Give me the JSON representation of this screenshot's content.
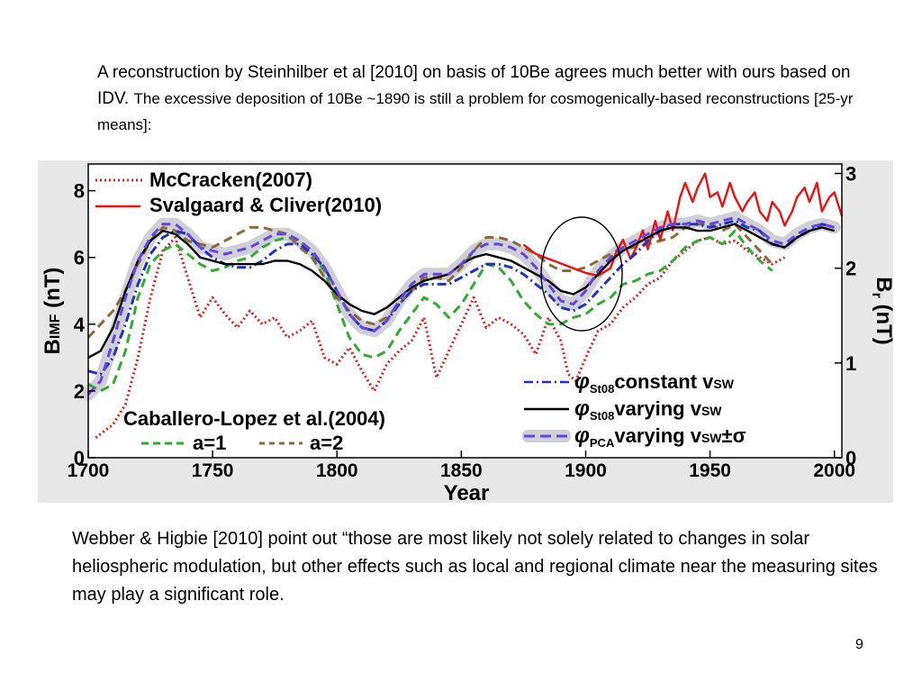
{
  "slide": {
    "intro_part1": "A reconstruction by Steinhilber et al [2010] on basis of 10Be agrees much better with ours based on IDV. ",
    "intro_part2": "The excessive deposition of 10Be ~1890 is still a problem for cosmogenically-based reconstructions [25-yr means]:",
    "outro": "Webber & Higbie [2010] point out “those are most likely not solely related to changes in solar heliospheric modulation, but other effects such as local and regional climate near the measuring sites may play a significant role.",
    "page_number": "9"
  },
  "chart_data": {
    "type": "line",
    "title": "",
    "xlabel": "Year",
    "ylabel_left_main": "B",
    "ylabel_left_sub": "IMF",
    "ylabel_left_unit": " (nT)",
    "ylabel_right_main": "B",
    "ylabel_right_sub": "r",
    "ylabel_right_unit": " (nT)",
    "xlim": [
      1700,
      2003
    ],
    "ylim_left": [
      0,
      8.8
    ],
    "ylim_right": [
      0,
      3.1
    ],
    "x_ticks": [
      "1700",
      "1750",
      "1800",
      "1850",
      "1900",
      "1950",
      "2000"
    ],
    "y_ticks_left": [
      "0",
      "2",
      "4",
      "6",
      "8"
    ],
    "y_ticks_right": [
      "0",
      "1",
      "2",
      "3"
    ],
    "grid": false,
    "legend": {
      "top_left": [
        "McCracken(2007)",
        "Svalgaard & Cliver(2010)"
      ],
      "bottom_left_title": "Caballero-Lopez et al.(2004)",
      "bottom_left": [
        "a=1",
        "a=2"
      ],
      "bottom_right": [
        {
          "symbol": "φ",
          "sub": "St08",
          "text": "constant v",
          "text_sub": "SW",
          "suffix": ""
        },
        {
          "symbol": "φ",
          "sub": "St08",
          "text": "varying v",
          "text_sub": "SW",
          "suffix": ""
        },
        {
          "symbol": "φ",
          "sub": "PCA",
          "text": "varying v",
          "text_sub": "SW",
          "suffix": "±σ"
        }
      ]
    },
    "series": [
      {
        "name": "McCracken(2007)",
        "color": "#dd2222",
        "style": "dotted",
        "axis": "left",
        "x": [
          1703,
          1710,
          1715,
          1720,
          1725,
          1730,
          1735,
          1740,
          1745,
          1750,
          1755,
          1760,
          1765,
          1770,
          1775,
          1780,
          1785,
          1790,
          1795,
          1800,
          1805,
          1810,
          1815,
          1820,
          1825,
          1830,
          1835,
          1840,
          1845,
          1850,
          1855,
          1860,
          1865,
          1870,
          1875,
          1880,
          1885,
          1890,
          1893,
          1896,
          1900,
          1905,
          1910,
          1915,
          1920,
          1925,
          1930,
          1935,
          1940,
          1945,
          1950,
          1955,
          1960,
          1965,
          1970,
          1975,
          1980
        ],
        "y": [
          0.6,
          1.0,
          1.6,
          3.0,
          4.8,
          6.2,
          6.6,
          5.4,
          4.2,
          4.8,
          4.3,
          3.9,
          4.4,
          4.0,
          4.2,
          3.6,
          3.8,
          4.1,
          3.0,
          2.8,
          3.3,
          2.6,
          2.0,
          2.8,
          3.2,
          3.5,
          4.2,
          2.4,
          3.2,
          4.0,
          4.8,
          3.9,
          4.2,
          4.0,
          3.7,
          3.1,
          4.2,
          3.5,
          2.5,
          2.3,
          3.0,
          3.8,
          4.0,
          4.5,
          4.8,
          5.2,
          5.4,
          5.9,
          6.2,
          6.5,
          6.6,
          6.4,
          6.5,
          6.2,
          6.0,
          5.8,
          6.0
        ]
      },
      {
        "name": "a=1",
        "color": "#33aa33",
        "style": "dashed",
        "axis": "left",
        "x": [
          1700,
          1705,
          1710,
          1715,
          1720,
          1725,
          1730,
          1735,
          1740,
          1745,
          1750,
          1755,
          1760,
          1765,
          1770,
          1775,
          1780,
          1785,
          1790,
          1795,
          1800,
          1805,
          1810,
          1815,
          1820,
          1825,
          1830,
          1835,
          1840,
          1845,
          1850,
          1855,
          1860,
          1865,
          1870,
          1875,
          1880,
          1885,
          1890,
          1895,
          1900,
          1905,
          1910,
          1915,
          1920,
          1925,
          1930,
          1935,
          1940,
          1945,
          1950,
          1955,
          1960,
          1965,
          1970,
          1975
        ],
        "y": [
          2.2,
          2.0,
          2.2,
          3.2,
          4.8,
          5.8,
          6.2,
          6.4,
          6.1,
          5.8,
          5.6,
          5.7,
          5.9,
          6.0,
          6.3,
          6.5,
          6.6,
          6.5,
          6.1,
          5.6,
          4.6,
          3.6,
          3.1,
          3.0,
          3.2,
          3.8,
          4.3,
          4.8,
          4.6,
          4.2,
          4.6,
          5.2,
          5.8,
          5.7,
          5.3,
          4.7,
          4.3,
          4.0,
          4.0,
          4.2,
          4.3,
          4.6,
          4.8,
          5.2,
          5.3,
          5.5,
          5.6,
          5.9,
          6.3,
          6.5,
          6.6,
          6.4,
          6.8,
          6.3,
          5.9,
          5.6
        ]
      },
      {
        "name": "a=2",
        "color": "#8b6a3a",
        "style": "dashed",
        "axis": "left",
        "x": [
          1700,
          1705,
          1710,
          1715,
          1720,
          1725,
          1730,
          1735,
          1740,
          1745,
          1750,
          1755,
          1760,
          1765,
          1770,
          1775,
          1780,
          1785,
          1790,
          1795,
          1800,
          1805,
          1810,
          1815,
          1820,
          1825,
          1830,
          1835,
          1840,
          1845,
          1850,
          1855,
          1860,
          1865,
          1870,
          1875,
          1880,
          1885,
          1890,
          1895,
          1900,
          1905,
          1910,
          1915,
          1920,
          1925,
          1930,
          1935,
          1940,
          1945,
          1950,
          1955,
          1960,
          1965,
          1970,
          1975
        ],
        "y": [
          3.6,
          4.0,
          4.4,
          5.0,
          5.8,
          6.5,
          6.9,
          6.8,
          6.5,
          6.4,
          6.3,
          6.5,
          6.7,
          6.9,
          6.9,
          6.8,
          6.7,
          6.3,
          6.0,
          5.4,
          4.8,
          4.4,
          4.1,
          4.0,
          4.2,
          4.6,
          5.0,
          5.4,
          5.4,
          5.3,
          5.7,
          6.2,
          6.6,
          6.6,
          6.5,
          6.3,
          6.1,
          5.8,
          5.6,
          5.6,
          5.7,
          5.9,
          6.1,
          6.3,
          6.3,
          6.4,
          6.5,
          6.6,
          6.9,
          7.0,
          7.0,
          6.8,
          7.0,
          6.6,
          6.2,
          5.8
        ]
      },
      {
        "name": "Svalgaard & Cliver(2010)",
        "color": "#ee1111",
        "style": "solid",
        "axis": "right",
        "x": [
          1875,
          1880,
          1885,
          1890,
          1895,
          1900,
          1905,
          1910,
          1912,
          1915,
          1918,
          1920,
          1923,
          1925,
          1928,
          1930,
          1933,
          1935,
          1938,
          1940,
          1943,
          1945,
          1948,
          1950,
          1953,
          1955,
          1958,
          1960,
          1963,
          1965,
          1968,
          1970,
          1973,
          1975,
          1978,
          1980,
          1983,
          1985,
          1988,
          1990,
          1993,
          1995,
          1998,
          2000,
          2003
        ],
        "y": [
          2.25,
          2.15,
          2.1,
          2.05,
          2.0,
          1.95,
          1.92,
          2.0,
          2.15,
          2.3,
          2.1,
          2.2,
          2.4,
          2.2,
          2.5,
          2.3,
          2.6,
          2.4,
          2.75,
          2.9,
          2.7,
          2.85,
          3.0,
          2.75,
          2.8,
          2.65,
          2.9,
          2.75,
          2.6,
          2.7,
          2.8,
          2.6,
          2.5,
          2.7,
          2.6,
          2.45,
          2.6,
          2.75,
          2.85,
          2.7,
          2.9,
          2.6,
          2.75,
          2.8,
          2.55
        ]
      },
      {
        "name": "φ St08 constant vSW",
        "color": "#2233bb",
        "style": "dashdot",
        "axis": "left",
        "x": [
          1700,
          1705,
          1710,
          1715,
          1720,
          1725,
          1730,
          1735,
          1740,
          1745,
          1750,
          1755,
          1760,
          1765,
          1770,
          1775,
          1780,
          1785,
          1790,
          1795,
          1800,
          1805,
          1810,
          1815,
          1820,
          1825,
          1830,
          1835,
          1840,
          1845,
          1850,
          1855,
          1860,
          1865,
          1870,
          1875,
          1880,
          1885,
          1890,
          1895,
          1900,
          1905,
          1910,
          1915,
          1920,
          1925,
          1930,
          1935,
          1940,
          1945,
          1950,
          1955,
          1960,
          1965,
          1970,
          1975,
          1980,
          1985,
          1990,
          1995,
          2000
        ],
        "y": [
          2.6,
          2.5,
          3.0,
          4.0,
          5.2,
          6.1,
          6.6,
          6.8,
          6.7,
          6.3,
          6.0,
          5.8,
          5.7,
          5.7,
          5.9,
          6.2,
          6.4,
          6.4,
          6.1,
          5.7,
          5.0,
          4.3,
          3.9,
          3.8,
          4.1,
          4.6,
          5.0,
          5.2,
          5.2,
          5.2,
          5.4,
          5.6,
          5.8,
          5.8,
          5.7,
          5.5,
          5.2,
          4.9,
          4.5,
          4.4,
          4.6,
          5.0,
          5.4,
          5.8,
          6.1,
          6.5,
          6.8,
          7.0,
          7.0,
          7.0,
          6.9,
          7.0,
          7.1,
          6.9,
          6.8,
          6.4,
          6.3,
          6.6,
          6.8,
          7.0,
          6.9
        ]
      },
      {
        "name": "φ St08 varying vSW",
        "color": "#000000",
        "style": "solid",
        "axis": "left",
        "x": [
          1700,
          1705,
          1710,
          1715,
          1720,
          1725,
          1730,
          1735,
          1740,
          1745,
          1750,
          1755,
          1760,
          1765,
          1770,
          1775,
          1780,
          1785,
          1790,
          1795,
          1800,
          1805,
          1810,
          1815,
          1820,
          1825,
          1830,
          1835,
          1840,
          1845,
          1850,
          1855,
          1860,
          1865,
          1870,
          1875,
          1880,
          1885,
          1890,
          1895,
          1900,
          1905,
          1910,
          1915,
          1920,
          1925,
          1930,
          1935,
          1940,
          1945,
          1950,
          1955,
          1960,
          1965,
          1970,
          1975,
          1980,
          1985,
          1990,
          1995,
          2000
        ],
        "y": [
          3.0,
          3.2,
          3.9,
          5.0,
          5.9,
          6.5,
          6.8,
          6.7,
          6.4,
          6.0,
          5.9,
          5.8,
          5.8,
          5.8,
          5.8,
          5.9,
          5.9,
          5.8,
          5.6,
          5.3,
          4.9,
          4.6,
          4.4,
          4.3,
          4.5,
          4.8,
          5.1,
          5.3,
          5.4,
          5.5,
          5.8,
          6.0,
          6.1,
          6.0,
          5.9,
          5.7,
          5.5,
          5.3,
          5.0,
          4.9,
          5.1,
          5.5,
          5.9,
          6.2,
          6.4,
          6.6,
          6.8,
          6.9,
          6.9,
          6.8,
          6.8,
          6.9,
          7.0,
          6.8,
          6.6,
          6.4,
          6.3,
          6.6,
          6.8,
          6.9,
          6.8
        ]
      },
      {
        "name": "φ PCA varying vSW±σ",
        "color": "#6644dd",
        "style": "dashed",
        "band_color": "#cfcfd8",
        "axis": "left",
        "x": [
          1700,
          1705,
          1710,
          1715,
          1720,
          1725,
          1730,
          1735,
          1740,
          1745,
          1750,
          1755,
          1760,
          1765,
          1770,
          1775,
          1780,
          1785,
          1790,
          1795,
          1800,
          1805,
          1810,
          1815,
          1820,
          1825,
          1830,
          1835,
          1840,
          1845,
          1850,
          1855,
          1860,
          1865,
          1870,
          1875,
          1880,
          1885,
          1890,
          1895,
          1900,
          1905,
          1910,
          1915,
          1920,
          1925,
          1930,
          1935,
          1940,
          1945,
          1950,
          1955,
          1960,
          1965,
          1970,
          1975,
          1980,
          1985,
          1990,
          1995,
          2000
        ],
        "y": [
          1.9,
          2.3,
          3.5,
          4.8,
          5.9,
          6.6,
          7.0,
          7.0,
          6.7,
          6.3,
          6.2,
          6.1,
          6.2,
          6.3,
          6.5,
          6.7,
          6.7,
          6.5,
          6.2,
          5.7,
          5.0,
          4.3,
          3.9,
          3.8,
          4.1,
          4.7,
          5.2,
          5.5,
          5.5,
          5.5,
          5.8,
          6.2,
          6.4,
          6.4,
          6.3,
          6.1,
          5.7,
          5.2,
          4.7,
          4.6,
          5.0,
          5.6,
          6.0,
          6.3,
          6.5,
          6.7,
          6.9,
          7.0,
          7.0,
          7.1,
          7.0,
          7.1,
          7.2,
          7.0,
          6.8,
          6.5,
          6.4,
          6.7,
          6.9,
          7.0,
          6.9
        ]
      }
    ],
    "annotation": "ellipse around 1890 minimum"
  }
}
